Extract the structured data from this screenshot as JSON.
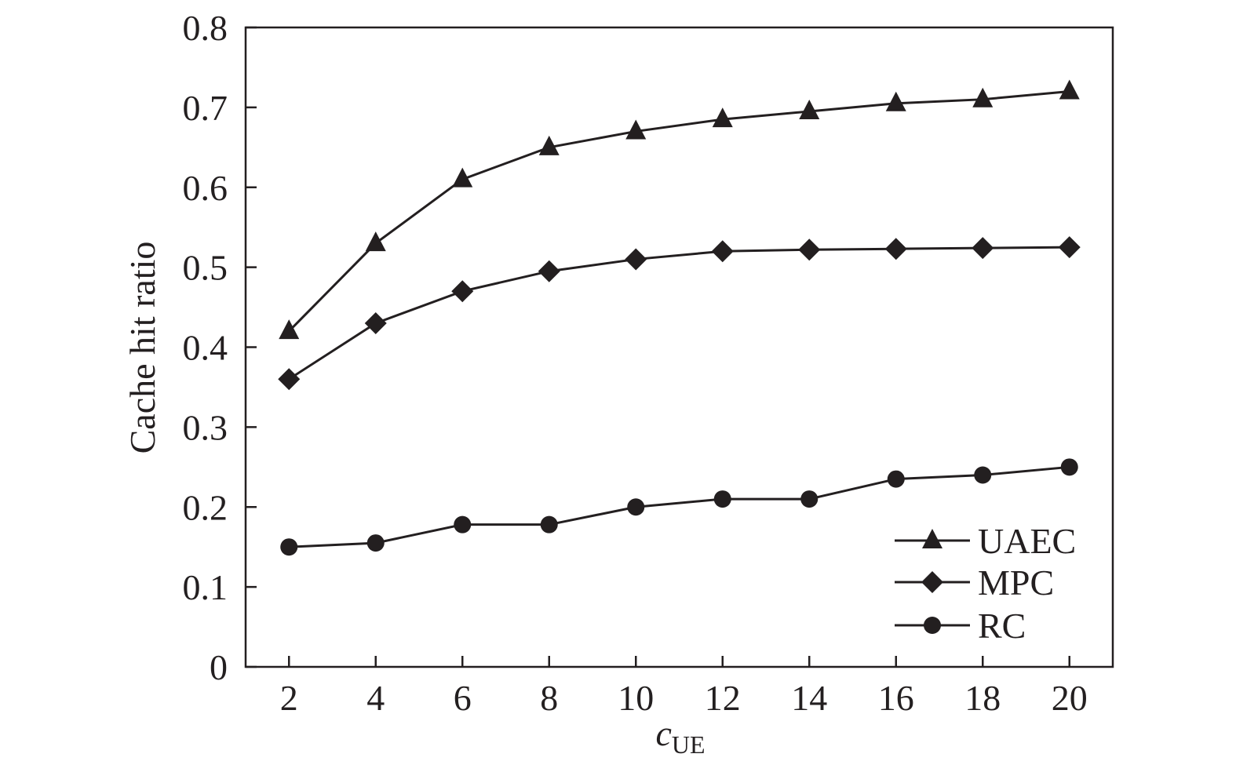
{
  "chart_data": {
    "type": "line",
    "title": "",
    "xlabel": "c",
    "xlabel_subscript": "UE",
    "ylabel": "Cache hit ratio",
    "x": [
      2,
      4,
      6,
      8,
      10,
      12,
      14,
      16,
      18,
      20
    ],
    "x_ticks": [
      "2",
      "4",
      "6",
      "8",
      "10",
      "12",
      "14",
      "16",
      "18",
      "20"
    ],
    "xlim": [
      1,
      21
    ],
    "y_ticks": [
      "0",
      "0.1",
      "0.2",
      "0.3",
      "0.4",
      "0.5",
      "0.6",
      "0.7",
      "0.8"
    ],
    "ylim": [
      0,
      0.8
    ],
    "grid": false,
    "legend_position": "bottom-right",
    "series": [
      {
        "name": "UAEC",
        "marker": "triangle",
        "values": [
          0.42,
          0.53,
          0.61,
          0.65,
          0.67,
          0.685,
          0.695,
          0.705,
          0.71,
          0.72
        ]
      },
      {
        "name": "MPC",
        "marker": "diamond",
        "values": [
          0.36,
          0.43,
          0.47,
          0.495,
          0.51,
          0.52,
          0.522,
          0.523,
          0.524,
          0.525
        ]
      },
      {
        "name": "RC",
        "marker": "circle",
        "values": [
          0.15,
          0.155,
          0.178,
          0.178,
          0.2,
          0.21,
          0.21,
          0.235,
          0.24,
          0.25
        ]
      }
    ],
    "colors": {
      "ink": "#231f20"
    }
  }
}
